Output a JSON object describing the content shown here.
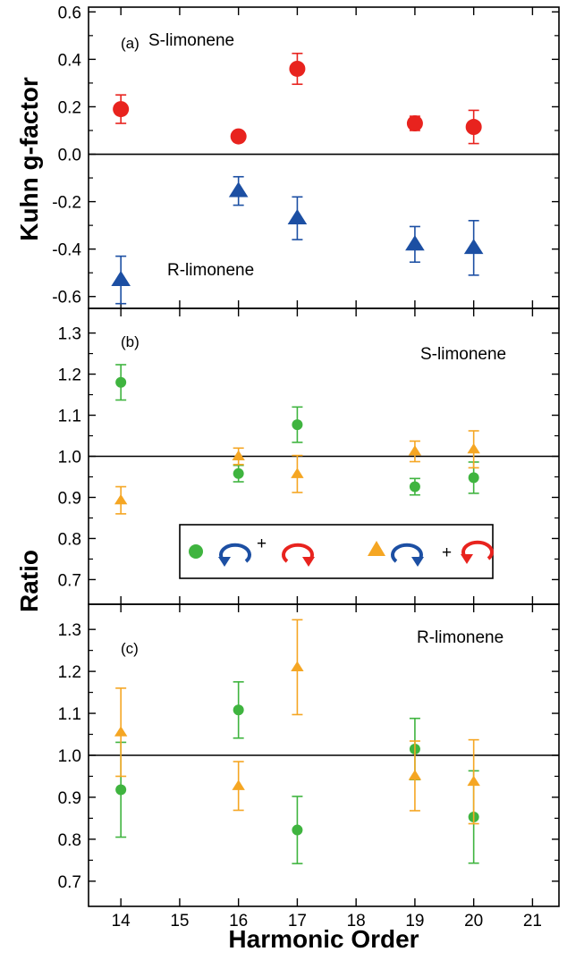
{
  "chart_data": [
    {
      "panel": "(a)",
      "type": "scatter",
      "ylabel": "Kuhn g-factor",
      "ylim": [
        -0.65,
        0.62
      ],
      "yticks": [
        0.6,
        0.4,
        0.2,
        0.0,
        -0.2,
        -0.4,
        -0.6
      ],
      "ytick_labels": [
        "0.6",
        "0.4",
        "0.2",
        "0.0",
        "-0.2",
        "-0.4",
        "-0.6"
      ],
      "reference_line": 0.0,
      "series": [
        {
          "name": "S-limonene",
          "marker": "circle",
          "color": "#e8231e",
          "x": [
            14,
            16,
            17,
            19,
            20
          ],
          "y": [
            0.19,
            0.075,
            0.36,
            0.13,
            0.115
          ],
          "err": [
            0.06,
            0.015,
            0.065,
            0.03,
            0.07
          ]
        },
        {
          "name": "R-limonene",
          "marker": "triangle",
          "color": "#1c4fa3",
          "x": [
            14,
            16,
            17,
            19,
            20
          ],
          "y": [
            -0.53,
            -0.155,
            -0.27,
            -0.38,
            -0.395
          ],
          "err": [
            0.1,
            0.06,
            0.09,
            0.075,
            0.115
          ]
        }
      ],
      "annotations": [
        "S-limonene",
        "R-limonene"
      ]
    },
    {
      "panel": "(b)",
      "type": "scatter",
      "ylim": [
        0.64,
        1.36
      ],
      "yticks": [
        1.3,
        1.2,
        1.1,
        1.0,
        0.9,
        0.8,
        0.7
      ],
      "ytick_labels": [
        "1.3",
        "1.2",
        "1.1",
        "1.0",
        "0.9",
        "0.8",
        "0.7"
      ],
      "reference_line": 1.0,
      "series": [
        {
          "marker": "circle",
          "color": "#3fb43f",
          "x": [
            14,
            16,
            17,
            19,
            20
          ],
          "y": [
            1.18,
            0.958,
            1.077,
            0.926,
            0.948
          ],
          "err": [
            0.043,
            0.02,
            0.043,
            0.02,
            0.038
          ]
        },
        {
          "marker": "triangle",
          "color": "#f5a623",
          "x": [
            14,
            16,
            17,
            19,
            20
          ],
          "y": [
            0.893,
            1.0,
            0.957,
            1.012,
            1.017
          ],
          "err": [
            0.033,
            0.02,
            0.045,
            0.025,
            0.045
          ]
        }
      ],
      "annotations": [
        "S-limonene"
      ],
      "legend": {
        "placement": "lower-center",
        "plus": "+",
        "entries": [
          {
            "marker": "circle",
            "color": "#3fb43f",
            "arrows": [
              "counterclockwise-blue",
              "clockwise-red"
            ]
          },
          {
            "marker": "triangle",
            "color": "#f5a623",
            "arrows": [
              "clockwise-blue",
              "counterclockwise-red"
            ]
          }
        ]
      }
    },
    {
      "panel": "(c)",
      "type": "scatter",
      "ylim": [
        0.64,
        1.36
      ],
      "yticks": [
        1.3,
        1.2,
        1.1,
        1.0,
        0.9,
        0.8,
        0.7
      ],
      "ytick_labels": [
        "1.3",
        "1.2",
        "1.1",
        "1.0",
        "0.9",
        "0.8",
        "0.7"
      ],
      "reference_line": 1.0,
      "series": [
        {
          "marker": "circle",
          "color": "#3fb43f",
          "x": [
            14,
            16,
            17,
            19,
            20
          ],
          "y": [
            0.918,
            1.108,
            0.822,
            1.015,
            0.853
          ],
          "err": [
            0.113,
            0.067,
            0.08,
            0.073,
            0.11
          ]
        },
        {
          "marker": "triangle",
          "color": "#f5a623",
          "x": [
            14,
            16,
            17,
            19,
            20
          ],
          "y": [
            1.055,
            0.927,
            1.21,
            0.951,
            0.937
          ],
          "err": [
            0.105,
            0.058,
            0.113,
            0.083,
            0.1
          ]
        }
      ],
      "annotations": [
        "R-limonene"
      ]
    }
  ],
  "shared": {
    "xlabel": "Harmonic Order",
    "ylabel_ratio": "Ratio",
    "xlim": [
      13.45,
      21.45
    ],
    "xticks": [
      14,
      15,
      16,
      17,
      18,
      19,
      20,
      21
    ],
    "xtick_labels": [
      "14",
      "15",
      "16",
      "17",
      "18",
      "19",
      "20",
      "21"
    ]
  }
}
